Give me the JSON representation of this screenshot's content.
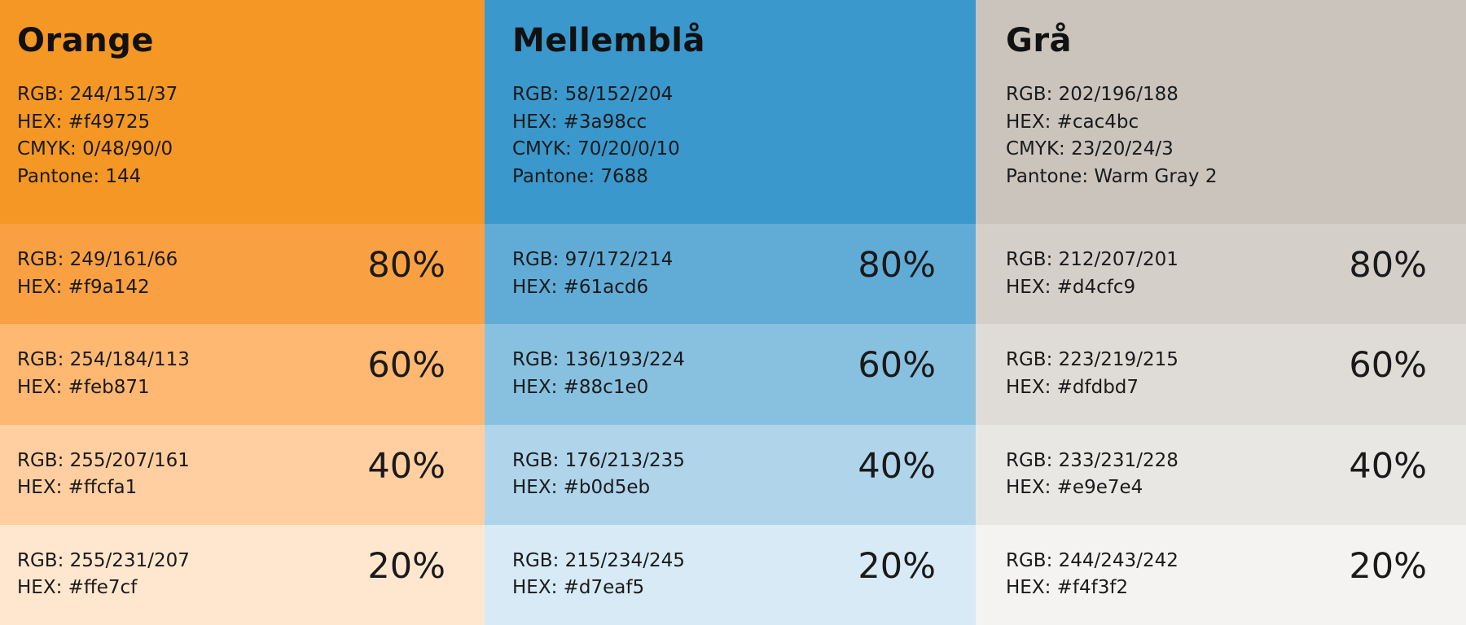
{
  "colors": [
    {
      "name": "Orange",
      "swatch": "#f49725",
      "specs": [
        "RGB: 244/151/37",
        "HEX: #f49725",
        "CMYK: 0/48/90/0",
        "Pantone: 144"
      ],
      "tints": [
        {
          "percent": "80%",
          "rgb": "RGB: 249/161/66",
          "hex": "HEX: #f9a142",
          "color": "#f9a142"
        },
        {
          "percent": "60%",
          "rgb": "RGB: 254/184/113",
          "hex": "HEX: #feb871",
          "color": "#feb871"
        },
        {
          "percent": "40%",
          "rgb": "RGB: 255/207/161",
          "hex": "HEX: #ffcfa1",
          "color": "#ffcfa1"
        },
        {
          "percent": "20%",
          "rgb": "RGB: 255/231/207",
          "hex": "HEX: #ffe7cf",
          "color": "#ffe7cf"
        }
      ]
    },
    {
      "name": "Mellemblå",
      "swatch": "#3a98cc",
      "specs": [
        "RGB: 58/152/204",
        "HEX: #3a98cc",
        "CMYK: 70/20/0/10",
        "Pantone: 7688"
      ],
      "tints": [
        {
          "percent": "80%",
          "rgb": "RGB: 97/172/214",
          "hex": "HEX: #61acd6",
          "color": "#61acd6"
        },
        {
          "percent": "60%",
          "rgb": "RGB: 136/193/224",
          "hex": "HEX: #88c1e0",
          "color": "#88c1e0"
        },
        {
          "percent": "40%",
          "rgb": "RGB: 176/213/235",
          "hex": "HEX: #b0d5eb",
          "color": "#b0d5eb"
        },
        {
          "percent": "20%",
          "rgb": "RGB: 215/234/245",
          "hex": "HEX: #d7eaf5",
          "color": "#d7eaf5"
        }
      ]
    },
    {
      "name": "Grå",
      "swatch": "#cac4bc",
      "specs": [
        "RGB: 202/196/188",
        "HEX: #cac4bc",
        "CMYK: 23/20/24/3",
        "Pantone: Warm Gray 2"
      ],
      "tints": [
        {
          "percent": "80%",
          "rgb": "RGB: 212/207/201",
          "hex": "HEX: #d4cfc9",
          "color": "#d4cfc9"
        },
        {
          "percent": "60%",
          "rgb": "RGB: 223/219/215",
          "hex": "HEX: #dfdbd7",
          "color": "#dfdbd7"
        },
        {
          "percent": "40%",
          "rgb": "RGB: 233/231/228",
          "hex": "HEX: #e9e7e4",
          "color": "#e9e7e4"
        },
        {
          "percent": "20%",
          "rgb": "RGB: 244/243/242",
          "hex": "HEX: #f4f3f2",
          "color": "#f4f3f2"
        }
      ]
    }
  ]
}
